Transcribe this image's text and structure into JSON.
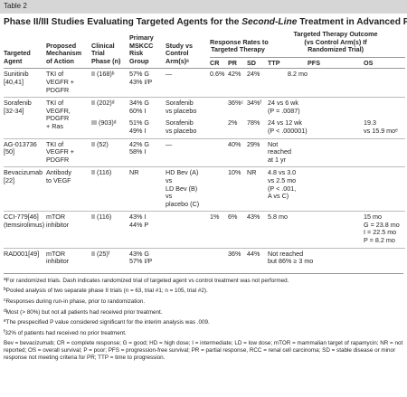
{
  "header": {
    "label": "Table 2",
    "title_start": "Phase II/III Studies Evaluating Targeted Agents for the ",
    "title_italic": "Second-Line",
    "title_end": " Treatment in Advanced RCC"
  },
  "table": {
    "columns": {
      "agent": [
        "Targeted",
        "Agent"
      ],
      "mechanism": [
        "Proposed",
        "Mechanism",
        "of Action"
      ],
      "phase": [
        "Clinical",
        "Trial",
        "Phase (n)"
      ],
      "risk": [
        "Primary",
        "MSKCC",
        "Risk",
        "Group"
      ],
      "study": [
        "Study vs",
        "Control",
        "Arm(s)ᵃ"
      ],
      "response_group": [
        "Response Rates to",
        "Targeted Therapy"
      ],
      "cr": [
        "CR"
      ],
      "pr": [
        "PR"
      ],
      "sd": [
        "SD"
      ],
      "outcome_group": [
        "Targeted Therapy Outcome",
        "(vs Control Arm(s) If",
        "Randomized Trial)"
      ],
      "ttp": [
        "TTP"
      ],
      "pfs": [
        "PFS"
      ],
      "os": [
        "OS"
      ]
    },
    "rows": [
      {
        "agent": [
          "Sunitinib",
          "[40,41]"
        ],
        "mechanism": [
          "TKI of",
          "VEGFR +",
          "PDGFR"
        ],
        "phase": [
          "II (168)ᵇ"
        ],
        "risk": [
          "57% G",
          "43% I/P"
        ],
        "study": [
          "—"
        ],
        "cr": [
          "0.6%"
        ],
        "pr": [
          "42%"
        ],
        "sd": [
          "24%"
        ],
        "pfs": [
          "8.2  mo"
        ]
      },
      {
        "agent": [
          "Sorafenib",
          "[32-34]"
        ],
        "mechanism": [
          "TKI of",
          "VEGFR,",
          "PDGFR",
          "+ Ras"
        ],
        "phase": [
          "II (202)ᵈ"
        ],
        "risk": [
          "34% G",
          "60% I"
        ],
        "study": [
          "Sorafenib",
          "vs placebo"
        ],
        "pr": [
          "36%ᶜ"
        ],
        "sd": [
          "34%ᶠ"
        ],
        "pfs": [
          "24 vs 6 wk",
          "(P = .0087)"
        ]
      },
      {
        "phase": [
          "III (903)ᵈ"
        ],
        "risk": [
          "51% G",
          "49% I"
        ],
        "study": [
          "Sorafenib",
          "vs placebo"
        ],
        "pr": [
          "2%"
        ],
        "sd": [
          "78%"
        ],
        "pfs": [
          "24 vs 12 wk",
          "(P < .000001)"
        ],
        "os": [
          "19.3",
          "vs 15.9 moᵉ"
        ]
      },
      {
        "agent": [
          "AG-013736",
          "[50]"
        ],
        "mechanism": [
          "TKI of",
          "VEGFR +",
          "PDGFR"
        ],
        "phase": [
          "II (52)"
        ],
        "risk": [
          "42% G",
          "58% I"
        ],
        "study": [
          "—"
        ],
        "pr": [
          "40%"
        ],
        "sd": [
          "29%"
        ],
        "ttp": [
          "Not",
          "reached",
          "at 1 yr"
        ]
      },
      {
        "agent": [
          "Bevacizumab",
          "[22]"
        ],
        "mechanism": [
          "Antibody",
          "to VEGF"
        ],
        "phase": [
          "II (116)"
        ],
        "risk": [
          "NR"
        ],
        "study": [
          "HD Bev (A)",
          "vs",
          "LD Bev (B)",
          "vs",
          "placebo (C)"
        ],
        "pr": [
          "10%"
        ],
        "sd": [
          "NR"
        ],
        "ttp": [
          "4.8 vs 3.0",
          "vs 2.5 mo",
          "(P < .001,",
          "A vs C)"
        ]
      },
      {
        "agent": [
          "CCI-779[46]",
          "(temsirolimus)"
        ],
        "mechanism": [
          "mTOR",
          "inhibitor"
        ],
        "phase": [
          "II (116)"
        ],
        "risk": [
          "43% I",
          "44% P"
        ],
        "cr": [
          "1%"
        ],
        "pr": [
          "6%"
        ],
        "sd": [
          "43%"
        ],
        "ttp": [
          "5.8 mo"
        ],
        "os": [
          "15 mo",
          "G = 23.8 mo",
          "I = 22.5 mo",
          "P = 8.2 mo"
        ]
      },
      {
        "agent": [
          "RAD001[49]"
        ],
        "mechanism": [
          "mTOR",
          "inhibitor"
        ],
        "phase": [
          "II (25)ᶠ"
        ],
        "risk": [
          "43% G",
          "57% I/P"
        ],
        "pr": [
          "36%"
        ],
        "sd": [
          "44%"
        ],
        "ttp": [
          "Not reached",
          "but 86% ≥ 3 mo"
        ]
      }
    ]
  },
  "footnotes": [
    {
      "mark": "a",
      "text": "For randomized trials. Dash indicates randomized trial of targeted agent vs control treatment was not performed."
    },
    {
      "mark": "b",
      "text": "Pooled analysis of two separate phase II trials (n = 63, trial #1; n = 105, trial #2)."
    },
    {
      "mark": "c",
      "text": "Responses during run-in phase, prior to randomization."
    },
    {
      "mark": "d",
      "text": "Most (> 80%) but not all patients had received prior treatment."
    },
    {
      "mark": "e",
      "text": "The prespecified P value considered significant for the interim analysis was .009."
    },
    {
      "mark": "f",
      "text": "32% of patients had received no prior treatment."
    }
  ],
  "abbreviations": "Bev = bevacizumab; CR = complete response; G = good; HD = high dose; I = intermediate; LD = low dose; mTOR = mammalian target of rapamycin; NR = not reported; OS = overall survival; P = poor; PFS = progression-free survival; PR = partial response, RCC = renal cell carcinoma; SD = stable disease or minor response not meeting criteria for PR; TTP = time to progression."
}
